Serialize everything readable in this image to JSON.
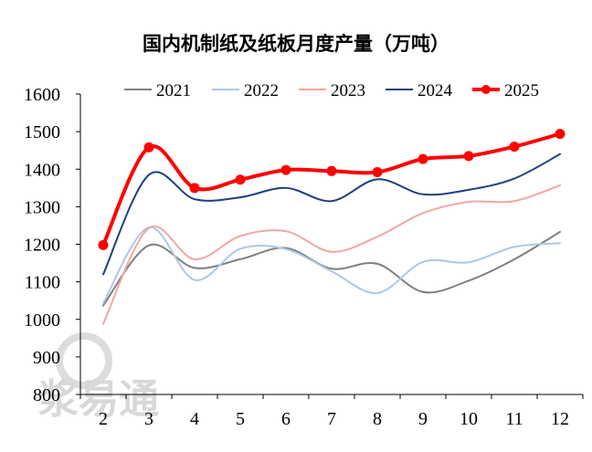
{
  "chart_data": {
    "type": "line",
    "title": "国内机制纸及纸板月度产量（万吨）",
    "xlabel": "",
    "ylabel": "",
    "categories": [
      "2",
      "3",
      "4",
      "5",
      "6",
      "7",
      "8",
      "9",
      "10",
      "11",
      "12"
    ],
    "ylim": [
      800,
      1600
    ],
    "yticks": [
      "800",
      "900",
      "1000",
      "1100",
      "1200",
      "1300",
      "1400",
      "1500",
      "1600"
    ],
    "grid": false,
    "legend_position": "top",
    "series": [
      {
        "name": "2021",
        "color": "#7f7f7f",
        "width": 2,
        "markers": false,
        "values": [
          1037,
          1197,
          1137,
          1160,
          1190,
          1135,
          1148,
          1073,
          1103,
          1160,
          1233
        ]
      },
      {
        "name": "2022",
        "color": "#adc8e6",
        "width": 2,
        "markers": false,
        "values": [
          1043,
          1245,
          1105,
          1188,
          1187,
          1128,
          1070,
          1153,
          1152,
          1193,
          1203
        ]
      },
      {
        "name": "2023",
        "color": "#f4a5a5",
        "width": 2,
        "markers": false,
        "values": [
          988,
          1243,
          1160,
          1222,
          1235,
          1180,
          1220,
          1283,
          1313,
          1315,
          1357
        ]
      },
      {
        "name": "2024",
        "color": "#1f3f7f",
        "width": 2,
        "markers": false,
        "values": [
          1120,
          1385,
          1320,
          1325,
          1350,
          1315,
          1373,
          1333,
          1345,
          1375,
          1440
        ]
      },
      {
        "name": "2025",
        "color": "#ff0000",
        "width": 4,
        "markers": true,
        "values": [
          1198,
          1458,
          1350,
          1372,
          1398,
          1395,
          1392,
          1427,
          1435,
          1460,
          1494
        ]
      }
    ]
  },
  "watermark": {
    "text": "浆易通",
    "color": "#d8d8d8"
  }
}
